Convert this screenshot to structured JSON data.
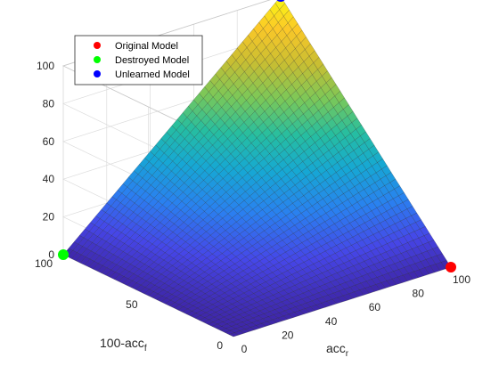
{
  "chart_data": {
    "type": "surface",
    "title": "",
    "xlabel": {
      "base": "acc",
      "sub": "r"
    },
    "ylabel": {
      "base": "100-acc",
      "sub": "f"
    },
    "zlabel": "",
    "xlim": [
      0,
      100
    ],
    "ylim": [
      0,
      100
    ],
    "zlim": [
      0,
      100
    ],
    "x_ticks": [
      "0",
      "20",
      "40",
      "60",
      "80",
      "100"
    ],
    "y_ticks": [
      "0",
      "50",
      "100"
    ],
    "z_ticks": [
      "0",
      "20",
      "40",
      "60",
      "80",
      "100"
    ],
    "grid": true,
    "colormap": "parula",
    "surface_formula": "z = acc_r * (100 - acc_f) / 100",
    "legend_position": "top-left",
    "points": [
      {
        "name": "Original Model",
        "acc_r": 100,
        "forget_term": 0,
        "z": 0,
        "color": "#ff0000"
      },
      {
        "name": "Destroyed Model",
        "acc_r": 0,
        "forget_term": 100,
        "z": 0,
        "color": "#00ff00"
      },
      {
        "name": "Unlearned Model",
        "acc_r": 100,
        "forget_term": 100,
        "z": 100,
        "color": "#0000ff"
      }
    ]
  }
}
